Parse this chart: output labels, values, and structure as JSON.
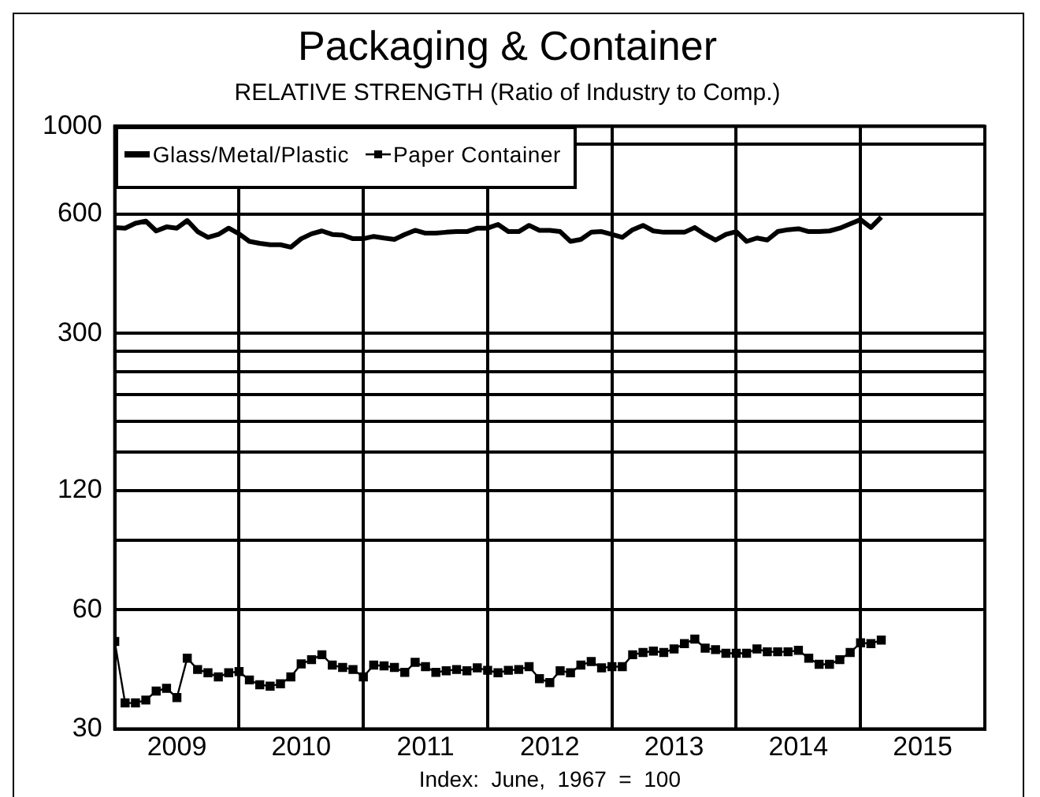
{
  "chart_data": {
    "type": "line",
    "title": "Packaging & Container",
    "subtitle": "RELATIVE STRENGTH (Ratio of Industry to Comp.)",
    "xlabel": "Index:  June,  1967  =  100",
    "x": [
      "2009-01",
      "2009-02",
      "2009-03",
      "2009-04",
      "2009-05",
      "2009-06",
      "2009-07",
      "2009-08",
      "2009-09",
      "2009-10",
      "2009-11",
      "2009-12",
      "2010-01",
      "2010-02",
      "2010-03",
      "2010-04",
      "2010-05",
      "2010-06",
      "2010-07",
      "2010-08",
      "2010-09",
      "2010-10",
      "2010-11",
      "2010-12",
      "2011-01",
      "2011-02",
      "2011-03",
      "2011-04",
      "2011-05",
      "2011-06",
      "2011-07",
      "2011-08",
      "2011-09",
      "2011-10",
      "2011-11",
      "2011-12",
      "2012-01",
      "2012-02",
      "2012-03",
      "2012-04",
      "2012-05",
      "2012-06",
      "2012-07",
      "2012-08",
      "2012-09",
      "2012-10",
      "2012-11",
      "2012-12",
      "2013-01",
      "2013-02",
      "2013-03",
      "2013-04",
      "2013-05",
      "2013-06",
      "2013-07",
      "2013-08",
      "2013-09",
      "2013-10",
      "2013-11",
      "2013-12",
      "2014-01",
      "2014-02",
      "2014-03",
      "2014-04",
      "2014-05",
      "2014-06",
      "2014-07",
      "2014-08",
      "2014-09",
      "2014-10",
      "2014-11",
      "2014-12",
      "2015-01",
      "2015-02",
      "2015-03"
    ],
    "series": [
      {
        "name": "Glass/Metal/Plastic",
        "color": "#000000",
        "marker": "none",
        "values": [
          555,
          553,
          569,
          576,
          544,
          557,
          553,
          578,
          542,
          524,
          533,
          553,
          535,
          512,
          506,
          502,
          502,
          495,
          520,
          535,
          544,
          533,
          531,
          520,
          520,
          527,
          522,
          518,
          533,
          546,
          537,
          537,
          540,
          542,
          542,
          553,
          553,
          565,
          542,
          542,
          562,
          546,
          546,
          542,
          512,
          518,
          540,
          542,
          533,
          524,
          548,
          562,
          544,
          540,
          540,
          540,
          555,
          533,
          516,
          533,
          542,
          512,
          522,
          516,
          542,
          548,
          551,
          542,
          542,
          544,
          553,
          567,
          581,
          555,
          590
        ]
      },
      {
        "name": "Paper Container",
        "color": "#000000",
        "marker": "square",
        "values": [
          49.9,
          34.9,
          34.9,
          35.5,
          37.4,
          38.0,
          36.0,
          45.3,
          42.4,
          41.6,
          40.6,
          41.6,
          41.9,
          39.9,
          38.8,
          38.5,
          39.0,
          40.6,
          43.8,
          44.9,
          46.2,
          43.5,
          42.9,
          42.4,
          40.6,
          43.5,
          43.3,
          42.9,
          41.7,
          44.2,
          43.1,
          41.7,
          42.1,
          42.4,
          42.1,
          42.8,
          42.2,
          41.6,
          42.2,
          42.4,
          43.1,
          40.2,
          39.3,
          42.1,
          41.6,
          43.5,
          44.4,
          42.8,
          43.1,
          43.1,
          46.2,
          46.8,
          47.2,
          46.8,
          47.8,
          49.3,
          50.6,
          48.0,
          47.6,
          46.6,
          46.6,
          46.6,
          47.8,
          47.0,
          47.0,
          47.0,
          47.4,
          45.3,
          43.7,
          43.7,
          44.9,
          46.8,
          49.5,
          49.3,
          50.3
        ]
      }
    ],
    "log": true,
    "grid": true,
    "legend": "top left",
    "line_style": "solid",
    "xlim": [
      "2009-01",
      "2016-01"
    ],
    "xticks": [
      {
        "value": "2009-07",
        "label": "2009"
      },
      {
        "value": "2010-01",
        "label": null
      },
      {
        "value": "2010-07",
        "label": "2010"
      },
      {
        "value": "2011-01",
        "label": null
      },
      {
        "value": "2011-07",
        "label": "2011"
      },
      {
        "value": "2012-01",
        "label": null
      },
      {
        "value": "2012-07",
        "label": "2012"
      },
      {
        "value": "2013-01",
        "label": null
      },
      {
        "value": "2013-07",
        "label": "2013"
      },
      {
        "value": "2014-01",
        "label": null
      },
      {
        "value": "2014-07",
        "label": "2014"
      },
      {
        "value": "2015-01",
        "label": null
      },
      {
        "value": "2015-07",
        "label": "2015"
      }
    ],
    "ylim": [
      30,
      1000
    ],
    "yticks": [
      30,
      60,
      {
        "value": 90,
        "label": null
      },
      120,
      {
        "value": 150,
        "label": null
      },
      {
        "value": 180,
        "label": null
      },
      {
        "value": 210,
        "label": null
      },
      {
        "value": 240,
        "label": null
      },
      {
        "value": 270,
        "label": null
      },
      300,
      600,
      {
        "value": 900,
        "label": null
      },
      1000
    ]
  }
}
